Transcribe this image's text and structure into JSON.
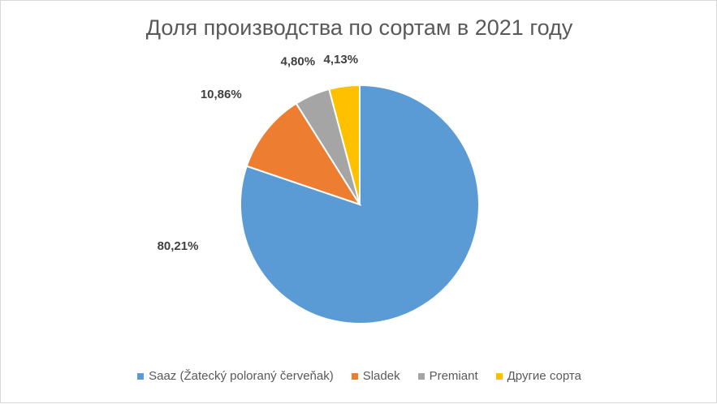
{
  "chart_data": {
    "type": "pie",
    "title": "Доля производства по сортам в 2021 году",
    "categories": [
      "Saaz (Žatecký poloraný červeňak)",
      "Sladek",
      "Premiant",
      "Другие сорта"
    ],
    "values": [
      80.21,
      10.86,
      4.8,
      4.13
    ],
    "data_labels": [
      "80,21%",
      "10,86%",
      "4,80%",
      "4,13%"
    ],
    "colors": [
      "#5b9bd5",
      "#ed7d31",
      "#a5a5a5",
      "#ffc000"
    ],
    "legend_position": "bottom",
    "start_angle": "12 o'clock, clockwise"
  }
}
